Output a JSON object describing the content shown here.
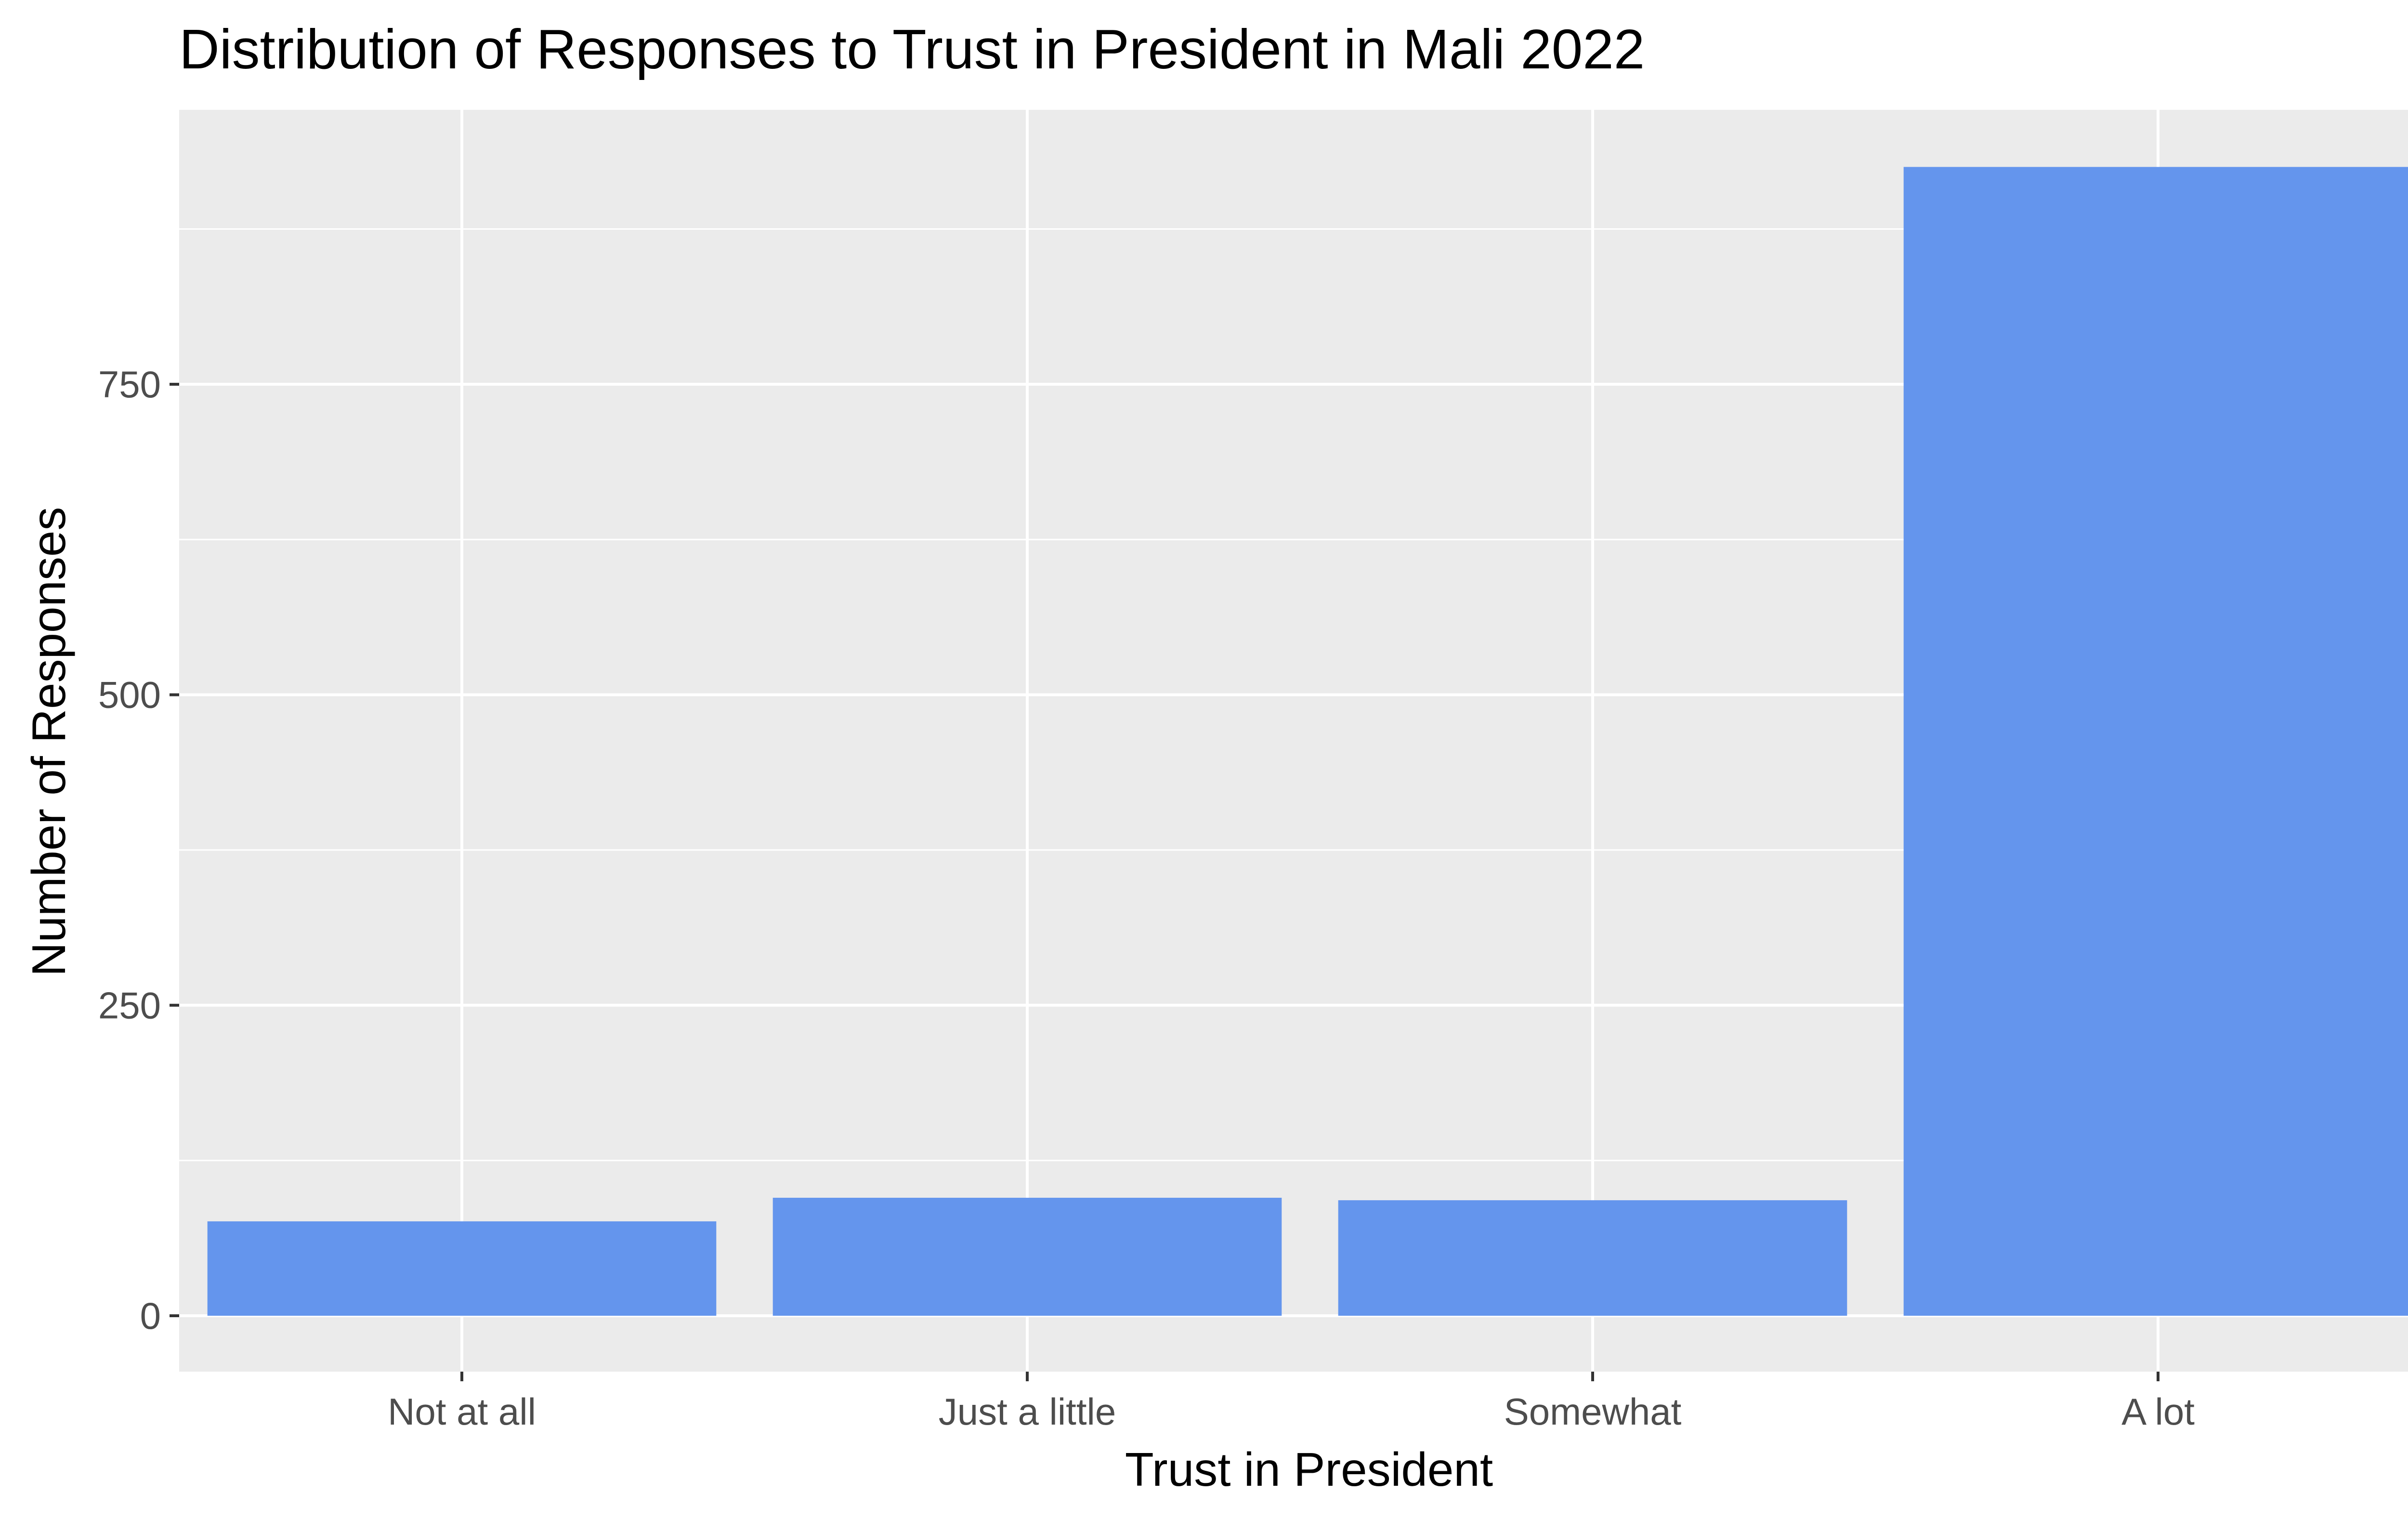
{
  "chart_data": {
    "type": "bar",
    "title": "Distribution of Responses to Trust in President in Mali 2022",
    "xlabel": "Trust in President",
    "ylabel": "Number of Responses",
    "categories": [
      "Not at all",
      "Just a little",
      "Somewhat",
      "A lot"
    ],
    "values": [
      76,
      95,
      93,
      925
    ],
    "ylim": [
      -45,
      971
    ],
    "yticks": [
      0,
      250,
      500,
      750
    ],
    "ytick_labels": [
      "0",
      "250",
      "500",
      "750"
    ],
    "grid": true,
    "legend": "none",
    "colors": {
      "bar": "#6495ED",
      "panel_background": "#EBEBEB",
      "grid": "#FFFFFF",
      "tick": "#333333"
    }
  }
}
